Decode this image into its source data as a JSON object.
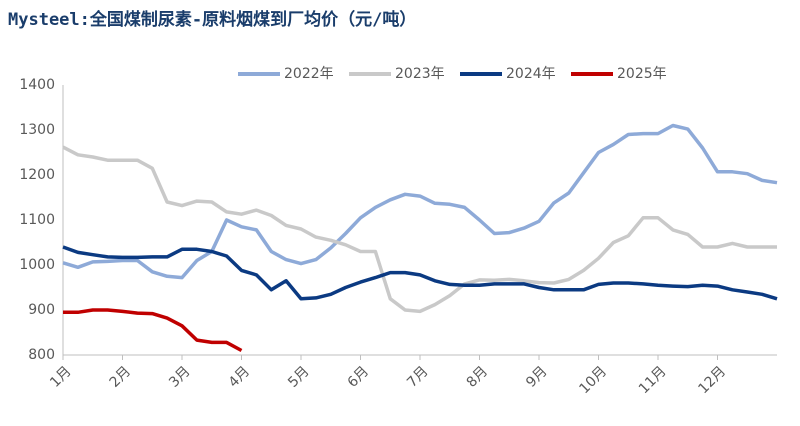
{
  "chart_data": {
    "type": "line",
    "title": "Mysteel:全国煤制尿素-原料烟煤到厂均价（元/吨）",
    "legend": "top",
    "categories": [
      "1月",
      null,
      null,
      null,
      "2月",
      null,
      null,
      null,
      "3月",
      null,
      null,
      null,
      "4月",
      null,
      null,
      null,
      "5月",
      null,
      null,
      null,
      "6月",
      null,
      null,
      null,
      "7月",
      null,
      null,
      null,
      "8月",
      null,
      null,
      null,
      "9月",
      null,
      null,
      null,
      "10月",
      null,
      null,
      null,
      "11月",
      null,
      null,
      null,
      "12月",
      null,
      null,
      null,
      null
    ],
    "ylim": [
      800,
      1400
    ],
    "yticks": [
      800,
      900,
      1000,
      1100,
      1200,
      1300,
      1400
    ],
    "series": [
      {
        "name": "2022年",
        "color": "#8eaad8",
        "values": [
          1005,
          995,
          1007,
          1008,
          1010,
          1010,
          985,
          975,
          972,
          1010,
          1030,
          1100,
          1085,
          1078,
          1030,
          1012,
          1003,
          1012,
          1038,
          1070,
          1105,
          1128,
          1145,
          1157,
          1153,
          1137,
          1135,
          1128,
          1100,
          1070,
          1072,
          1082,
          1097,
          1138,
          1160,
          1205,
          1250,
          1268,
          1290,
          1292,
          1292,
          1310,
          1302,
          1260,
          1207,
          1207,
          1203,
          1188,
          1183
        ]
      },
      {
        "name": "2023年",
        "color": "#c9c9c9",
        "values": [
          1262,
          1245,
          1240,
          1233,
          1233,
          1233,
          1215,
          1140,
          1132,
          1142,
          1140,
          1118,
          1113,
          1122,
          1110,
          1088,
          1080,
          1062,
          1055,
          1045,
          1030,
          1030,
          925,
          900,
          897,
          912,
          932,
          958,
          967,
          966,
          968,
          965,
          961,
          960,
          968,
          988,
          1015,
          1050,
          1065,
          1105,
          1105,
          1078,
          1068,
          1040,
          1040,
          1048,
          1040,
          1040,
          1040
        ]
      },
      {
        "name": "2024年",
        "color": "#0b3a82",
        "values": [
          1040,
          1028,
          1023,
          1018,
          1017,
          1017,
          1018,
          1018,
          1035,
          1035,
          1030,
          1020,
          988,
          978,
          945,
          965,
          925,
          927,
          935,
          950,
          962,
          972,
          983,
          983,
          978,
          965,
          957,
          955,
          955,
          958,
          958,
          958,
          950,
          945,
          945,
          945,
          957,
          960,
          960,
          958,
          955,
          953,
          952,
          955,
          953,
          945,
          940,
          935,
          925
        ]
      },
      {
        "name": "2025年",
        "color": "#c00000",
        "values": [
          895,
          895,
          900,
          900,
          897,
          893,
          892,
          882,
          865,
          833,
          828,
          828,
          810,
          null,
          null,
          null,
          null,
          null,
          null,
          null,
          null,
          null,
          null,
          null,
          null,
          null,
          null,
          null,
          null,
          null,
          null,
          null,
          null,
          null,
          null,
          null,
          null,
          null,
          null,
          null,
          null,
          null,
          null,
          null,
          null,
          null,
          null,
          null,
          null
        ]
      }
    ]
  }
}
